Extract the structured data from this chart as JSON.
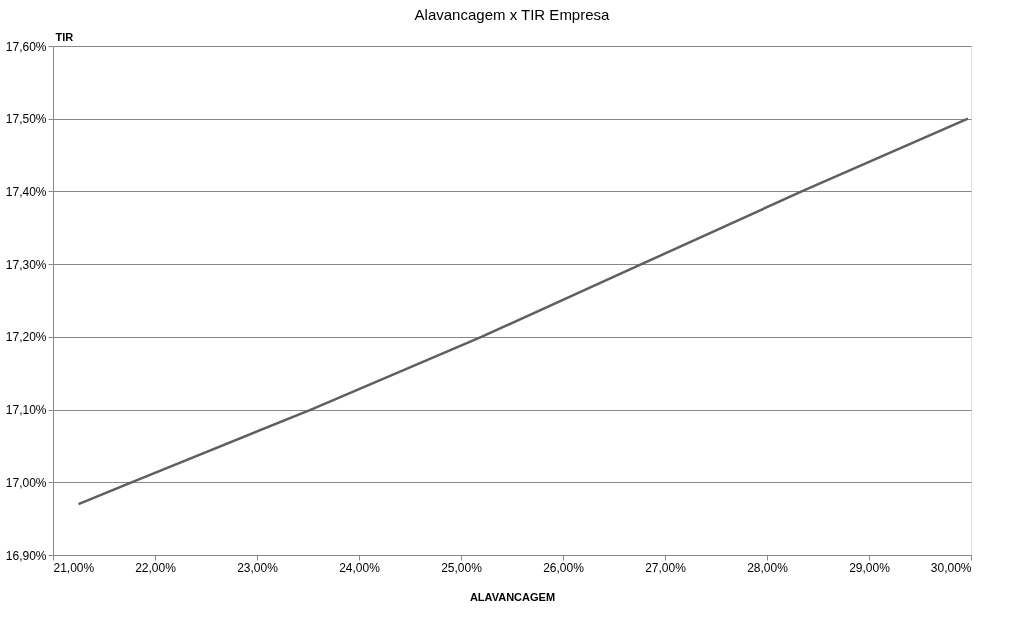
{
  "chart_data": {
    "type": "line",
    "title": "Alavancagem    x TIR Empresa",
    "xlabel": "ALAVANCAGEM",
    "ylabel": "TIR",
    "x": [
      21.25,
      21.77,
      23.53,
      25.2,
      26.77,
      28.34,
      29.97
    ],
    "series": [
      {
        "color": "#5f5f5f",
        "values": [
          16.97,
          17.0,
          17.1,
          17.2,
          17.3,
          17.4,
          17.5
        ]
      }
    ],
    "xlim": [
      21,
      30
    ],
    "xticks": [
      {
        "value": 21,
        "label": "21,00%"
      },
      {
        "value": 22,
        "label": "22,00%"
      },
      {
        "value": 23,
        "label": "23,00%"
      },
      {
        "value": 24,
        "label": "24,00%"
      },
      {
        "value": 25,
        "label": "25,00%"
      },
      {
        "value": 26,
        "label": "26,00%"
      },
      {
        "value": 27,
        "label": "27,00%"
      },
      {
        "value": 28,
        "label": "28,00%"
      },
      {
        "value": 29,
        "label": "29,00%"
      },
      {
        "value": 30,
        "label": "30,00%"
      }
    ],
    "ylim": [
      16.9,
      17.6
    ],
    "yticks": [
      {
        "value": 16.9,
        "label": "16,90%"
      },
      {
        "value": 17.0,
        "label": "17,00%"
      },
      {
        "value": 17.1,
        "label": "17,10%"
      },
      {
        "value": 17.2,
        "label": "17,20%"
      },
      {
        "value": 17.3,
        "label": "17,30%"
      },
      {
        "value": 17.4,
        "label": "17,40%"
      },
      {
        "value": 17.5,
        "label": "17,50%"
      },
      {
        "value": 17.6,
        "label": "17,60%"
      }
    ],
    "grid": "y",
    "legend": false,
    "marker": "none",
    "line_style": "solid"
  }
}
